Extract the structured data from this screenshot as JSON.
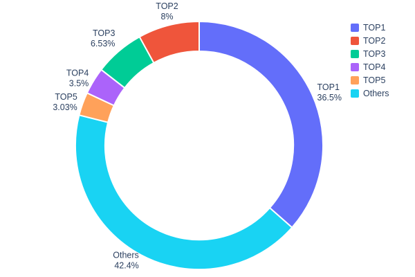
{
  "chart_data": {
    "type": "pie",
    "title": "",
    "hole": 0.76,
    "labels": [
      "TOP1",
      "TOP2",
      "TOP3",
      "TOP4",
      "TOP5",
      "Others"
    ],
    "values": [
      36.5,
      8,
      6.53,
      3.5,
      3.03,
      42.4
    ],
    "value_labels": [
      "36.5%",
      "8%",
      "6.53%",
      "3.5%",
      "3.03%",
      "42.4%"
    ],
    "colors": [
      "#636efa",
      "#ef553b",
      "#00cc96",
      "#ab63fa",
      "#ffa15a",
      "#19d3f3"
    ],
    "draw_order": [
      "TOP1",
      "Others",
      "TOP5",
      "TOP4",
      "TOP3",
      "TOP2"
    ],
    "direction": "clockwise",
    "rotation_deg": 0,
    "text_color": "#2a3f5f",
    "background_color": "#ffffff",
    "legend": {
      "position": "top-right",
      "entries": [
        "TOP1",
        "TOP2",
        "TOP3",
        "TOP4",
        "TOP5",
        "Others"
      ]
    }
  }
}
